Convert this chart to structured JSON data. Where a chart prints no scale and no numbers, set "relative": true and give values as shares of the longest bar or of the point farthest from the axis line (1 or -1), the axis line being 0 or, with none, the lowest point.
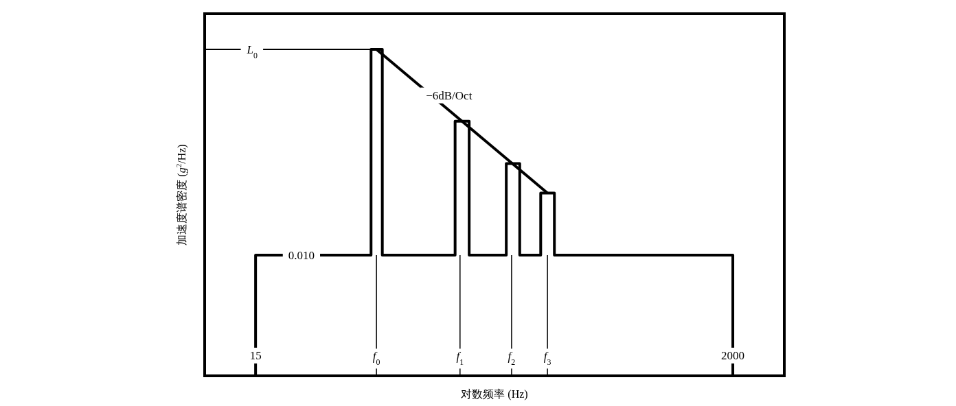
{
  "chart_data": {
    "type": "line",
    "relative": true,
    "xlabel": "对数频率 (Hz)",
    "ylabel": "加速度谱密度 (*g*$^{2}$/Hz)",
    "log": "x",
    "xlim": [
      8.9,
      3390
    ],
    "xticks": [
      15,
      2000
    ],
    "series": [
      {
        "color": "#000000",
        "x": [
          15,
          15,
          49,
          49,
          55,
          55,
          116,
          116,
          134,
          134,
          196,
          196,
          225,
          225,
          279,
          279,
          321,
          321,
          2000,
          2000
        ],
        "values": [
          0,
          0.37,
          0.37,
          1,
          1,
          0.37,
          0.37,
          0.78,
          0.78,
          0.37,
          0.37,
          0.65,
          0.65,
          0.37,
          0.37,
          0.56,
          0.56,
          0.37,
          0.37,
          0
        ]
      },
      {
        "color": "#000000",
        "x": [
          51.8,
          299
        ],
        "values": [
          1,
          0.56
        ]
      }
    ],
    "ref_lines": [
      {
        "axis": "x",
        "value": 51.8
      },
      {
        "axis": "x",
        "value": 122
      },
      {
        "axis": "x",
        "value": 207
      },
      {
        "axis": "x",
        "value": 299
      },
      {
        "axis": "y",
        "value": 1
      }
    ],
    "annotations": [
      {
        "text": "*L*$_{0}$",
        "x": 14.5,
        "y": 1
      },
      {
        "text": "0.010",
        "x": 24,
        "y": 0.37
      },
      {
        "text": "−6dB/Oct",
        "x": 86,
        "y": 0.86
      },
      {
        "text": "*f*$_{0}$",
        "x": 51.8,
        "y": 0.06
      },
      {
        "text": "*f*$_{1}$",
        "x": 122,
        "y": 0.06
      },
      {
        "text": "*f*$_{2}$",
        "x": 207,
        "y": 0.06
      },
      {
        "text": "*f*$_{3}$",
        "x": 299,
        "y": 0.06
      }
    ]
  }
}
